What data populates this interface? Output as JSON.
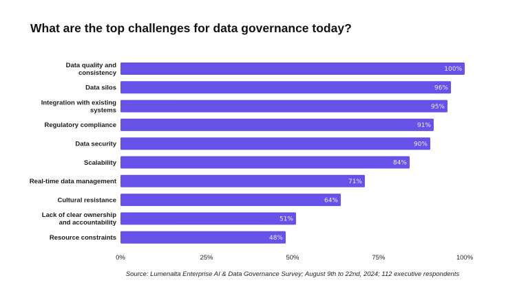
{
  "chart_data": {
    "type": "bar",
    "orientation": "horizontal",
    "title": "What are the top challenges for data governance today?",
    "categories": [
      [
        "Data quality and",
        "consistency"
      ],
      [
        "Data silos"
      ],
      [
        "Integration with existing",
        "systems"
      ],
      [
        "Regulatory compliance"
      ],
      [
        "Data security"
      ],
      [
        "Scalability"
      ],
      [
        "Real-time data management"
      ],
      [
        "Cultural resistance"
      ],
      [
        "Lack of clear ownership",
        "and accountability"
      ],
      [
        "Resource constraints"
      ]
    ],
    "values": [
      100,
      96,
      95,
      91,
      90,
      84,
      71,
      64,
      51,
      48
    ],
    "value_labels": [
      "100%",
      "96%",
      "95%",
      "91%",
      "90%",
      "84%",
      "71%",
      "64%",
      "51%",
      "48%"
    ],
    "xlim": [
      0,
      100
    ],
    "xticks": [
      0,
      25,
      50,
      75,
      100
    ],
    "xtick_labels": [
      "0%",
      "25%",
      "50%",
      "75%",
      "100%"
    ],
    "xlabel": "",
    "ylabel": "",
    "grid": false,
    "legend": "none",
    "bar_color": "#6652E8",
    "source": "Source: Lumenalta Enterprise AI & Data Governance Survey; August 9th to 22nd, 2024; 112 executive respondents"
  }
}
